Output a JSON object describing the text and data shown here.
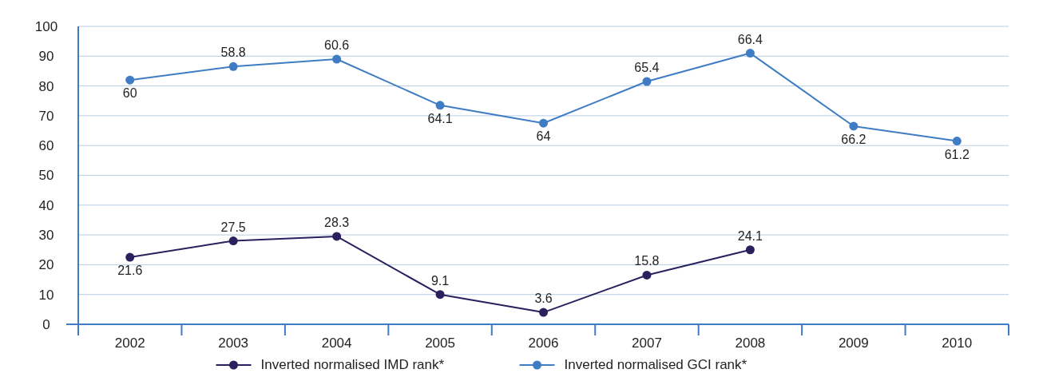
{
  "chart_data": {
    "type": "line",
    "categories": [
      "2002",
      "2003",
      "2004",
      "2005",
      "2006",
      "2007",
      "2008",
      "2009",
      "2010"
    ],
    "series": [
      {
        "name": "Inverted normalised IMD rank*",
        "color": "#2b1f5e",
        "values": [
          22.5,
          28,
          29.5,
          10,
          4,
          16.5,
          25,
          null,
          null
        ]
      },
      {
        "name": "Inverted normalised GCI rank*",
        "color": "#3f7cc4",
        "values": [
          82,
          86.5,
          89,
          73.5,
          67.5,
          81.5,
          91,
          66.5,
          61.5
        ]
      }
    ],
    "annotations": [
      {
        "text": "21.6",
        "x": "2002",
        "y": 22.5
      },
      {
        "text": "27.5",
        "x": "2003",
        "y": 28
      },
      {
        "text": "28.3",
        "x": "2004",
        "y": 29.5
      },
      {
        "text": "9.1",
        "x": "2005",
        "y": 10
      },
      {
        "text": "3.6",
        "x": "2006",
        "y": 4
      },
      {
        "text": "15.8",
        "x": "2007",
        "y": 16.5
      },
      {
        "text": "24.1",
        "x": "2008",
        "y": 25
      },
      {
        "text": "60",
        "x": "2002",
        "y": 82
      },
      {
        "text": "58.8",
        "x": "2003",
        "y": 86.5
      },
      {
        "text": "60.6",
        "x": "2004",
        "y": 89
      },
      {
        "text": "64.1",
        "x": "2005",
        "y": 73.5
      },
      {
        "text": "64",
        "x": "2006",
        "y": 67.5
      },
      {
        "text": "65.4",
        "x": "2007",
        "y": 81.5
      },
      {
        "text": "66.4",
        "x": "2008",
        "y": 91
      },
      {
        "text": "66.2",
        "x": "2009",
        "y": 66.5
      },
      {
        "text": "61.2",
        "x": "2010",
        "y": 61.5
      }
    ],
    "ylim": [
      0,
      100
    ],
    "yticks": [
      0,
      10,
      20,
      30,
      40,
      50,
      60,
      70,
      80,
      90,
      100
    ],
    "grid": "y",
    "legend": "bottom",
    "marker": "circle",
    "line_style": "solid"
  }
}
